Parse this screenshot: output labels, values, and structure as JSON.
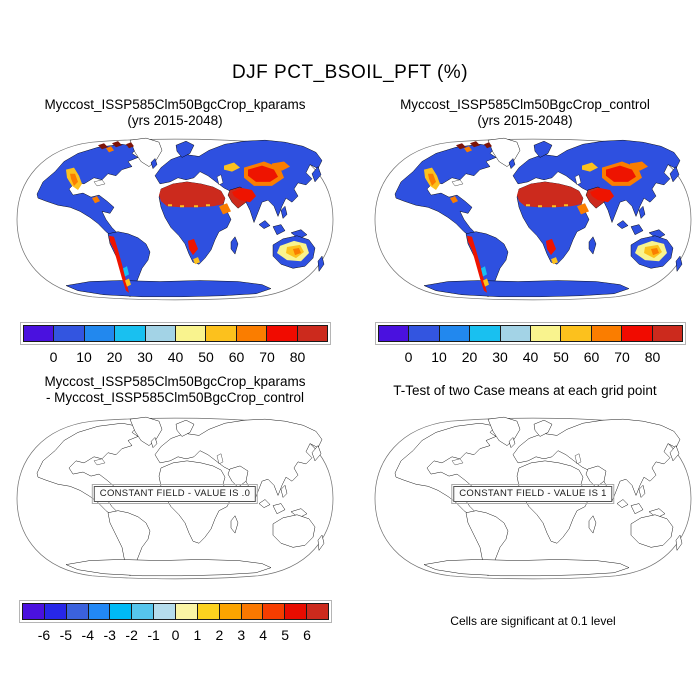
{
  "figure": {
    "title": "DJF PCT_BSOIL_PFT (%)",
    "caption": "Cells are significant at 0.1 level"
  },
  "panels": {
    "top_left": {
      "title_line1": "Myccost_ISSP585Clm50BgcCrop_kparams",
      "title_line2": "(yrs 2015-2048)"
    },
    "top_right": {
      "title_line1": "Myccost_ISSP585Clm50BgcCrop_control",
      "title_line2": "(yrs 2015-2048)"
    },
    "bottom_left": {
      "title_line1": "Myccost_ISSP585Clm50BgcCrop_kparams",
      "title_line2": "- Myccost_ISSP585Clm50BgcCrop_control",
      "constant_field_label": "CONSTANT FIELD - VALUE IS .0"
    },
    "bottom_right": {
      "title_line1": "T-Test of two Case means at each grid point",
      "constant_field_label": "CONSTANT FIELD - VALUE IS 1"
    }
  },
  "chart_data": [
    {
      "type": "heatmap",
      "panel": "top_left",
      "title": "Myccost_ISSP585Clm50BgcCrop_kparams (yrs 2015-2048)",
      "variable": "DJF PCT_BSOIL_PFT (%)",
      "projection": "robinson world map, ocean white, land colored by bare-soil PFT percent",
      "colorbar": {
        "tick_labels": [
          "0",
          "10",
          "20",
          "30",
          "40",
          "50",
          "60",
          "70",
          "80"
        ],
        "colors": [
          "#4a11df",
          "#3355e0",
          "#2288ee",
          "#19c0f0",
          "#a3d3e6",
          "#f9f38e",
          "#fcc11d",
          "#fa7d00",
          "#f10b00",
          "#cc2a1d"
        ]
      },
      "values_by_region": [
        {
          "region": "Sahara desert",
          "value": ">80"
        },
        {
          "region": "Arabian Peninsula and Middle East",
          "value": ">80"
        },
        {
          "region": "Central Asian deserts (Taklamakan, Gobi)",
          "value": "50 to >80"
        },
        {
          "region": "Western US Great Basin",
          "value": "40-70"
        },
        {
          "region": "Andes / coastal Chile-Peru strip",
          "value": "60 to >80"
        },
        {
          "region": "Namib coast, southwest Africa",
          "value": "60 to >80"
        },
        {
          "region": "Horn of Africa",
          "value": "50-70"
        },
        {
          "region": "Australian interior",
          "value": "40-60"
        },
        {
          "region": "High-arctic Canadian islands",
          "value": ">80 speckles"
        },
        {
          "region": "Most other vegetated land incl. Antarctica coast strip",
          "value": "0-10"
        },
        {
          "region": "Greenland interior",
          "value": "no data (white)"
        }
      ]
    },
    {
      "type": "heatmap",
      "panel": "top_right",
      "title": "Myccost_ISSP585Clm50BgcCrop_control (yrs 2015-2048)",
      "variable": "DJF PCT_BSOIL_PFT (%)",
      "projection": "robinson world map, visually identical to top_left panel",
      "colorbar": {
        "tick_labels": [
          "0",
          "10",
          "20",
          "30",
          "40",
          "50",
          "60",
          "70",
          "80"
        ],
        "colors": [
          "#4a11df",
          "#3355e0",
          "#2288ee",
          "#19c0f0",
          "#a3d3e6",
          "#f9f38e",
          "#fcc11d",
          "#fa7d00",
          "#f10b00",
          "#cc2a1d"
        ]
      },
      "values_by_region": [
        {
          "region": "same spatial pattern as kparams case",
          "value": "identical"
        }
      ]
    },
    {
      "type": "heatmap",
      "panel": "bottom_left",
      "title": "Myccost_ISSP585Clm50BgcCrop_kparams - Myccost_ISSP585Clm50BgcCrop_control",
      "variable": "difference of DJF PCT_BSOIL_PFT (%)",
      "projection": "robinson world map, outline only (no fill)",
      "constant_field": true,
      "constant_value": "0",
      "annotation": "CONSTANT FIELD - VALUE IS .0",
      "colorbar": {
        "tick_labels": [
          "-6",
          "-5",
          "-4",
          "-3",
          "-2",
          "-1",
          "0",
          "1",
          "2",
          "3",
          "4",
          "5",
          "6"
        ],
        "colors": [
          "#4a11df",
          "#2727e8",
          "#3b62dd",
          "#2288f5",
          "#00baf5",
          "#56c5ec",
          "#b5dcec",
          "#faf4a5",
          "#fcd21f",
          "#fca400",
          "#fa7800",
          "#f63d00",
          "#e80c00",
          "#cc2a1d"
        ]
      }
    },
    {
      "type": "map",
      "panel": "bottom_right",
      "title": "T-Test of two Case means at each grid point",
      "projection": "robinson world map, outline only (no fill)",
      "constant_field": true,
      "constant_value": "1",
      "annotation": "CONSTANT FIELD - VALUE IS 1",
      "caption": "Cells are significant at 0.1 level"
    }
  ]
}
